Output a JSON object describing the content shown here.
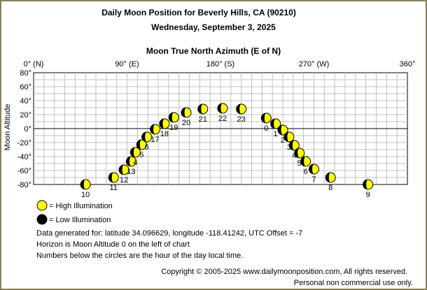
{
  "chart_data": {
    "type": "scatter",
    "title": "Daily Moon Position for Beverly Hills, CA (90210)",
    "subtitle": "Wednesday, September 3, 2025",
    "xlabel": "Moon True North Azimuth (E of N)",
    "ylabel": "Moon Altitude",
    "xlim": [
      0,
      360
    ],
    "ylim": [
      -80,
      80
    ],
    "x_ticks": [
      0,
      90,
      180,
      270,
      360
    ],
    "x_tick_labels": [
      "0° (N)",
      "90° (E)",
      "180° (S)",
      "270° (W)",
      "360°"
    ],
    "y_ticks": [
      80,
      60,
      40,
      20,
      0,
      -20,
      -40,
      -60,
      -80
    ],
    "y_tick_labels": [
      "80°",
      "60°",
      "40°",
      "20°",
      "0°",
      "-20°",
      "-40°",
      "-60°",
      "-80°"
    ],
    "grid": true,
    "horizon_altitude": 0,
    "points": [
      {
        "hour": "10",
        "az": 50,
        "alt": -80,
        "illum": "high"
      },
      {
        "hour": "11",
        "az": 77,
        "alt": -70,
        "illum": "high"
      },
      {
        "hour": "12",
        "az": 87,
        "alt": -59,
        "illum": "high"
      },
      {
        "hour": "13",
        "az": 94,
        "alt": -47,
        "illum": "high"
      },
      {
        "hour": "4",
        "az": 98,
        "alt": -34,
        "illum": "high"
      },
      {
        "hour": "5",
        "az": 104,
        "alt": -23,
        "illum": "high"
      },
      {
        "hour": "6",
        "az": 109,
        "alt": -12,
        "illum": "high"
      },
      {
        "hour": "17",
        "az": 117,
        "alt": -1,
        "illum": "high"
      },
      {
        "hour": "18",
        "az": 126,
        "alt": 7,
        "illum": "high"
      },
      {
        "hour": "19",
        "az": 135,
        "alt": 16,
        "illum": "high"
      },
      {
        "hour": "20",
        "az": 147,
        "alt": 23,
        "illum": "high"
      },
      {
        "hour": "21",
        "az": 163,
        "alt": 28,
        "illum": "high"
      },
      {
        "hour": "22",
        "az": 182,
        "alt": 29,
        "illum": "high"
      },
      {
        "hour": "23",
        "az": 200,
        "alt": 28,
        "illum": "high"
      },
      {
        "hour": "0",
        "az": 224,
        "alt": 15,
        "illum": "high"
      },
      {
        "hour": "1",
        "az": 233,
        "alt": 7,
        "illum": "high"
      },
      {
        "hour": "2",
        "az": 240,
        "alt": -2,
        "illum": "high"
      },
      {
        "hour": "3",
        "az": 246,
        "alt": -12,
        "illum": "high"
      },
      {
        "hour": "4",
        "az": 251,
        "alt": -24,
        "illum": "high"
      },
      {
        "hour": "5",
        "az": 256,
        "alt": -35,
        "illum": "high"
      },
      {
        "hour": "6",
        "az": 262,
        "alt": -47,
        "illum": "high"
      },
      {
        "hour": "7",
        "az": 270,
        "alt": -58,
        "illum": "high"
      },
      {
        "hour": "8",
        "az": 286,
        "alt": -70,
        "illum": "high"
      },
      {
        "hour": "9",
        "az": 322,
        "alt": -80,
        "illum": "high"
      }
    ]
  },
  "legend": {
    "high_label": "= High Illumination",
    "low_label": "= Low Illumination"
  },
  "notes": [
    "Data generated for: latitude 34.096629, longitude -118.41242, UTC Offset = -7",
    "Horizon is Moon Altitude 0 on the left of chart",
    "Numbers below the circles are the hour of the day local time."
  ],
  "footer": {
    "copyright": "Copyright © 2005-2025 www.dailymoonposition.com, All rights reserved.",
    "rights": "Personal non commercial use only."
  },
  "colors": {
    "frame": "#8a7f55",
    "grid": "#c0c0c0",
    "high_fill": "#ffff00",
    "shade": "#000000"
  }
}
